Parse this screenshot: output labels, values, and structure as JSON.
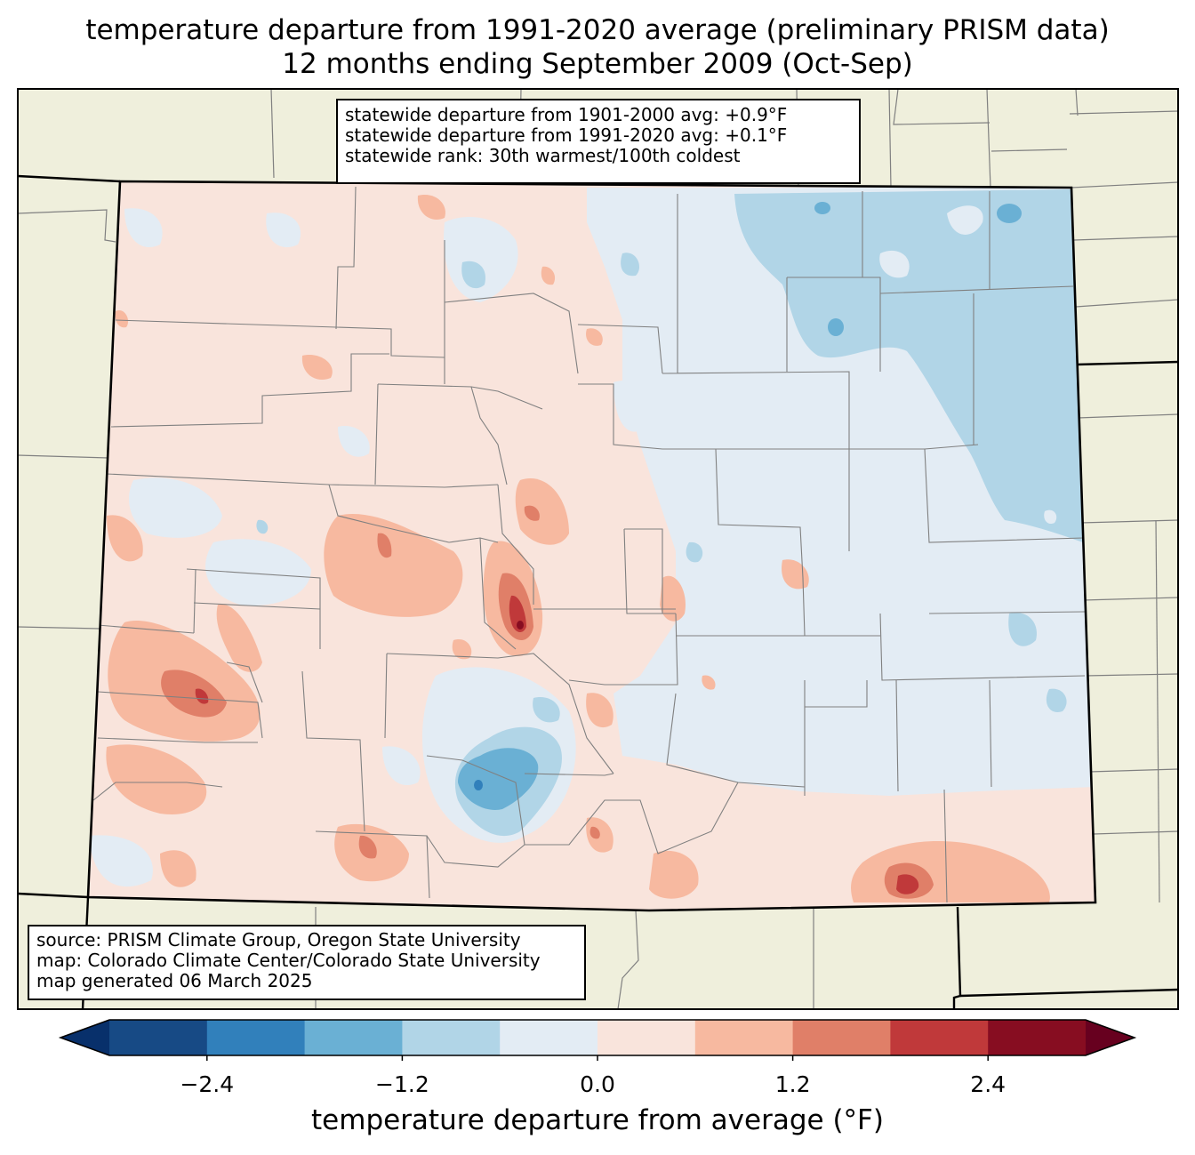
{
  "title": {
    "line1": "temperature departure from 1991-2020 average (preliminary PRISM data)",
    "line2": "12 months ending September 2009 (Oct-Sep)"
  },
  "stats_box": {
    "line1": "statewide departure from 1901-2000 avg: +0.9°F",
    "line2": "statewide departure from 1991-2020 avg: +0.1°F",
    "line3": "statewide rank: 30th warmest/100th coldest"
  },
  "source_box": {
    "line1": "source: PRISM Climate Group, Oregon State University",
    "line2": "map: Colorado Climate Center/Colorado State University",
    "line3": "map generated 06 March 2025"
  },
  "colorbar": {
    "label": "temperature departure from average (°F)",
    "ticks": [
      "−2.4",
      "−1.2",
      "0.0",
      "1.2",
      "2.4"
    ],
    "tick_values": [
      -2.4,
      -1.2,
      0.0,
      1.2,
      2.4
    ],
    "range": [
      -3.0,
      3.0
    ],
    "step": 0.6,
    "colors": [
      "#08306b",
      "#174a85",
      "#3180bb",
      "#6ab0d4",
      "#b1d5e7",
      "#e3ecf4",
      "#f9e4dc",
      "#f7b9a0",
      "#e07f68",
      "#c0393a",
      "#870d21",
      "#67001f"
    ]
  },
  "map_colors": {
    "ocean_background": "#efefdc",
    "state_fill": "#f9e4dc",
    "state_border": "#000000",
    "county_border": "#808080"
  }
}
